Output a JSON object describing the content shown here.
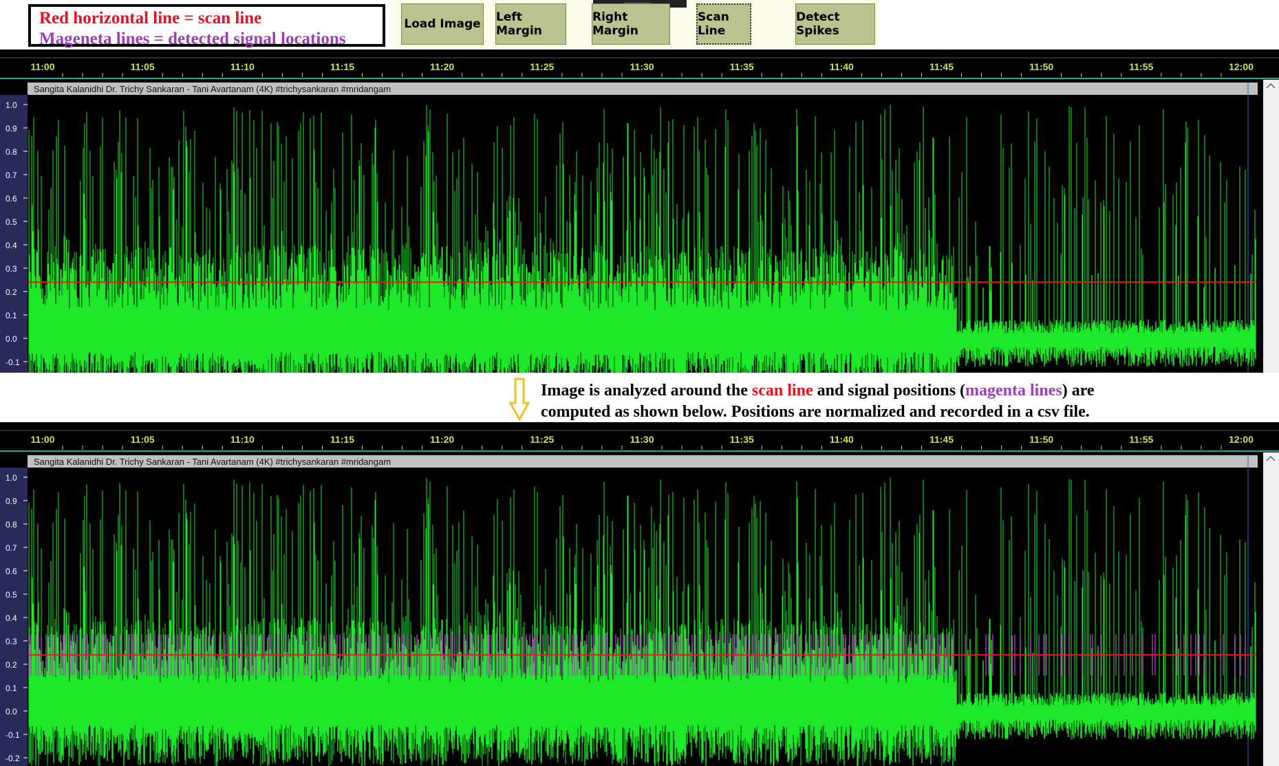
{
  "legend": {
    "line1": "Red horizontal line = scan line",
    "line2": "Mageneta lines = detected signal locations"
  },
  "toolbar": {
    "load_image": "Load Image",
    "left_margin": "Left Margin",
    "right_margin": "Right Margin",
    "scan_line": "Scan Line",
    "detect_spikes": "Detect Spikes"
  },
  "timeline_ticks": [
    "11:00",
    "11:05",
    "11:10",
    "11:15",
    "11:20",
    "11:25",
    "11:30",
    "11:35",
    "11:40",
    "11:45",
    "11:50",
    "11:55",
    "12:00"
  ],
  "track_title": "Sangita Kalanidhi Dr. Trichy Sankaran - Tani Avartanam (4K) #trichysankaran #mridangam",
  "amplitude_ticks_top": [
    "1.0",
    "0.9",
    "0.8",
    "0.7",
    "0.6",
    "0.5",
    "0.4",
    "0.3",
    "0.2",
    "0.1",
    "0.0",
    "-0.1"
  ],
  "amplitude_ticks_bottom": [
    "1.0",
    "0.9",
    "0.8",
    "0.7",
    "0.6",
    "0.5",
    "0.4",
    "0.3",
    "0.2",
    "0.1",
    "0.0",
    "-0.1",
    "-0.2"
  ],
  "scan_line_level": 0.24,
  "annotation": {
    "p1": "Image is analyzed around the ",
    "scan": "scan line",
    "p2": " and signal positions (",
    "mag": "magenta lines",
    "p3": ") are",
    "line2": "computed as shown below. Positions are normalized and recorded in a csv file."
  },
  "colors": {
    "waveform": "#1ee82a",
    "waveform_dark": "#0c7a14",
    "scan_line": "#ff1010",
    "magenta": "#b040c0",
    "timeline_text": "#c8e650",
    "tick_text": "#ffffff",
    "title_bar": "#c0c0c0"
  }
}
